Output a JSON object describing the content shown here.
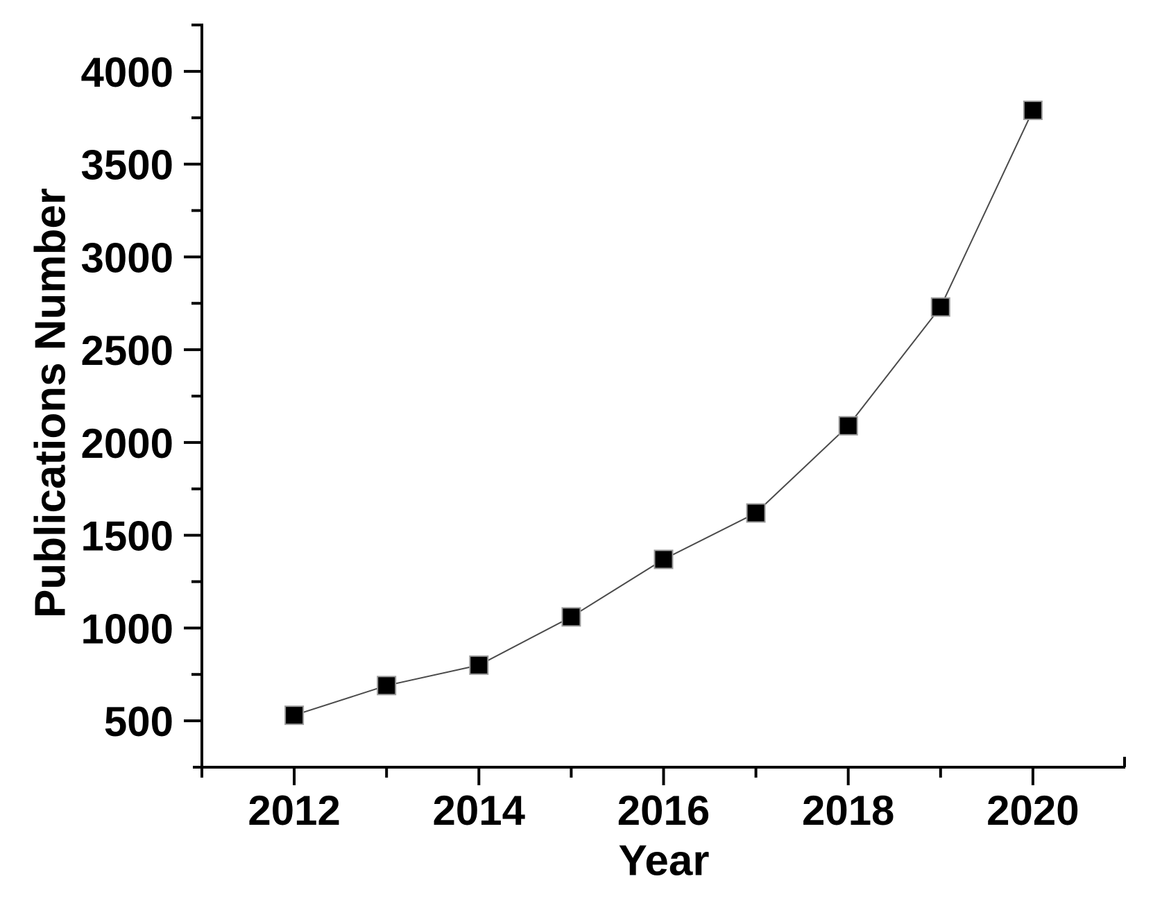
{
  "figure": {
    "background": "#ffffff",
    "kind": "scientific-line-plot"
  },
  "chart_data": {
    "type": "line",
    "title": "",
    "xlabel": "Year",
    "ylabel": "Publications Number",
    "x": [
      2012,
      2013,
      2014,
      2015,
      2016,
      2017,
      2018,
      2019,
      2020
    ],
    "values": [
      530,
      690,
      800,
      1060,
      1370,
      1620,
      2090,
      2730,
      3790
    ],
    "series_name": "Publications Number",
    "xlim": [
      2011,
      2021
    ],
    "ylim": [
      250,
      4250
    ],
    "x_major_ticks": [
      2012,
      2014,
      2016,
      2018,
      2020
    ],
    "x_minor_ticks": [
      2013,
      2015,
      2017,
      2019
    ],
    "x_end_ticks": [
      2011,
      2021
    ],
    "y_major_ticks": [
      500,
      1000,
      1500,
      2000,
      2500,
      3000,
      3500,
      4000
    ],
    "y_minor_ticks": [
      750,
      1250,
      1750,
      2250,
      2750,
      3250,
      3750,
      4250
    ],
    "grid": false,
    "legend": false,
    "marker": "filled-square",
    "marker_color": "#000000",
    "marker_edge_color": "#9c9c9c",
    "line_color": "#4a4a4a",
    "axis_color": "#000000",
    "tick_label_color": "#000000"
  }
}
